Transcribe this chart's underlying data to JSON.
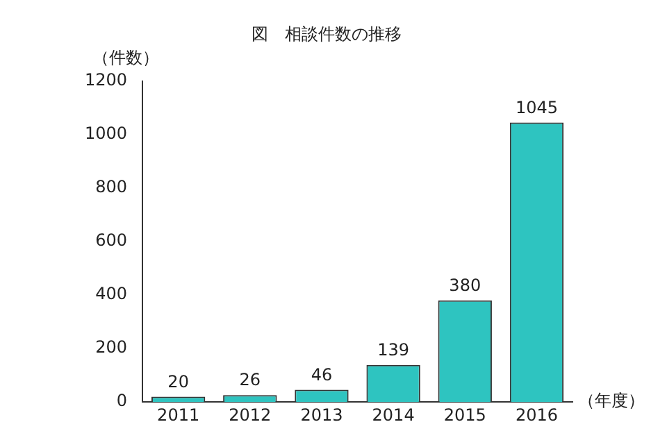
{
  "chart_data": {
    "type": "bar",
    "title": "図　相談件数の推移",
    "ylabel": "（件数）",
    "xlabel": "（年度）",
    "categories": [
      "2011",
      "2012",
      "2013",
      "2014",
      "2015",
      "2016"
    ],
    "values": [
      20,
      26,
      46,
      139,
      380,
      1045
    ],
    "color": "#2ec4c0",
    "ylim": [
      0,
      1200
    ],
    "yticks": [
      0,
      200,
      400,
      600,
      800,
      1000,
      1200
    ],
    "grid": false,
    "legend": false,
    "data_labels": true
  }
}
